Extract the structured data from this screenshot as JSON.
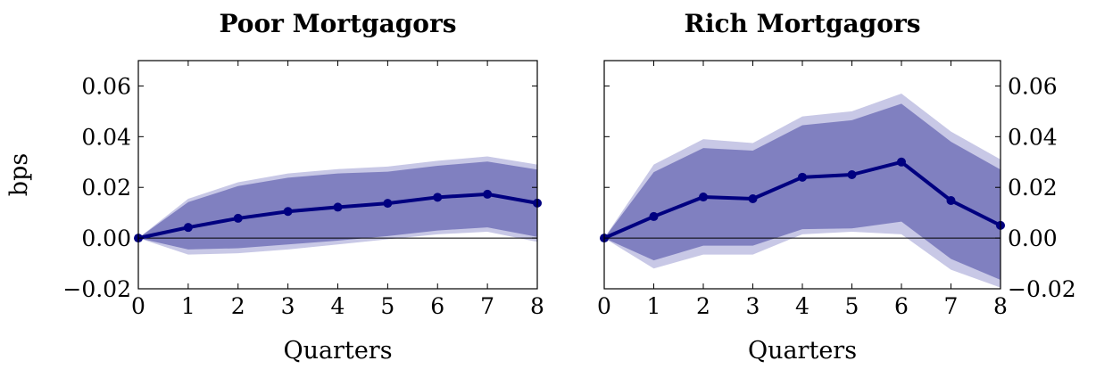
{
  "chart_data": [
    {
      "type": "line",
      "title": "Poor Mortgagors",
      "xlabel": "Quarters",
      "ylabel": "bps",
      "x": [
        0,
        1,
        2,
        3,
        4,
        5,
        6,
        7,
        8
      ],
      "xlim": [
        0,
        8
      ],
      "ylim": [
        -0.02,
        0.07
      ],
      "yticks": [
        -0.02,
        0.0,
        0.02,
        0.04,
        0.06
      ],
      "ytick_labels": [
        "−0.02",
        "0.00",
        "0.02",
        "0.04",
        "0.06"
      ],
      "yaxis_side": "left",
      "zero_line": true,
      "series": [
        {
          "values": [
            0.0,
            0.0042,
            0.0078,
            0.0105,
            0.0122,
            0.0137,
            0.0161,
            0.0173,
            0.0138
          ],
          "color": "#000080"
        }
      ],
      "bands": [
        {
          "lower": [
            0.0,
            -0.0065,
            -0.006,
            -0.0045,
            -0.0025,
            -0.0005,
            0.0015,
            0.0025,
            -0.0015
          ],
          "upper": [
            0.0,
            0.0155,
            0.022,
            0.0255,
            0.0272,
            0.0282,
            0.0305,
            0.0322,
            0.029
          ],
          "color": "#c8c8e6"
        },
        {
          "lower": [
            0.0,
            -0.0045,
            -0.004,
            -0.0025,
            -0.001,
            0.0008,
            0.003,
            0.0042,
            0.0005
          ],
          "upper": [
            0.0,
            0.0142,
            0.0205,
            0.0238,
            0.0255,
            0.0262,
            0.0285,
            0.0302,
            0.027
          ],
          "color": "#8080c0"
        }
      ]
    },
    {
      "type": "line",
      "title": "Rich Mortgagors",
      "xlabel": "Quarters",
      "ylabel": "",
      "x": [
        0,
        1,
        2,
        3,
        4,
        5,
        6,
        7,
        8
      ],
      "xlim": [
        0,
        8
      ],
      "ylim": [
        -0.02,
        0.07
      ],
      "yticks": [
        -0.02,
        0.0,
        0.02,
        0.04,
        0.06
      ],
      "ytick_labels": [
        "−0.02",
        "0.00",
        "0.02",
        "0.04",
        "0.06"
      ],
      "yaxis_side": "right",
      "zero_line": true,
      "series": [
        {
          "values": [
            0.0,
            0.0085,
            0.0162,
            0.0155,
            0.024,
            0.025,
            0.03,
            0.0148,
            0.005
          ],
          "color": "#000080"
        }
      ],
      "bands": [
        {
          "lower": [
            0.0,
            -0.012,
            -0.0065,
            -0.0065,
            0.0015,
            0.0025,
            0.0015,
            -0.0125,
            -0.0195
          ],
          "upper": [
            0.0,
            0.029,
            0.039,
            0.0375,
            0.048,
            0.05,
            0.057,
            0.042,
            0.031
          ],
          "color": "#c8c8e6"
        },
        {
          "lower": [
            0.0,
            -0.0088,
            -0.003,
            -0.003,
            0.0035,
            0.0038,
            0.0065,
            -0.0082,
            -0.0165
          ],
          "upper": [
            0.0,
            0.026,
            0.0355,
            0.0345,
            0.0445,
            0.0465,
            0.053,
            0.038,
            0.027
          ],
          "color": "#8080c0"
        }
      ]
    }
  ]
}
